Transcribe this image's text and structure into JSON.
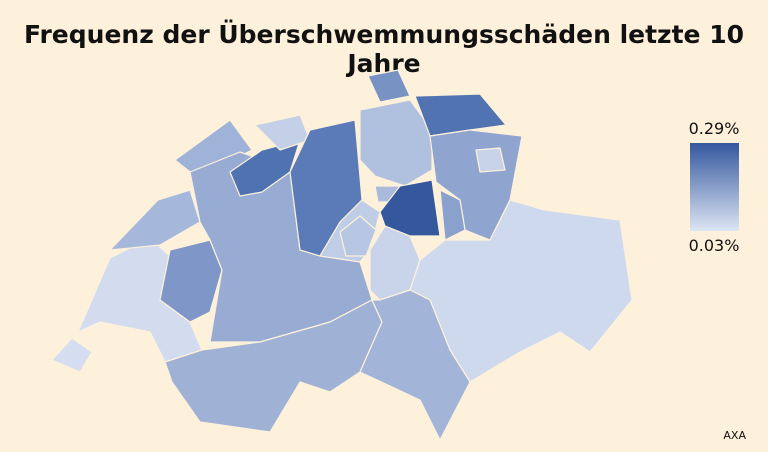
{
  "title": "Frequenz der Überschwemmungsschäden letzte 10 Jahre",
  "legend": {
    "max_label": "0.29%",
    "min_label": "0.03%",
    "max_color": "#34579e",
    "min_color": "#dde5f3"
  },
  "source": "AXA",
  "background": "#fdf1db",
  "regions": [
    {
      "id": "geneva",
      "fill": "#d5def0"
    },
    {
      "id": "vaud",
      "fill": "#d3dcef"
    },
    {
      "id": "jura",
      "fill": "#9fb2d7"
    },
    {
      "id": "neuchatel",
      "fill": "#a5b7da"
    },
    {
      "id": "fribourg",
      "fill": "#7f97c8"
    },
    {
      "id": "bern",
      "fill": "#98acd3"
    },
    {
      "id": "valais",
      "fill": "#9fb2d6"
    },
    {
      "id": "solothurn",
      "fill": "#4f72b1"
    },
    {
      "id": "basel",
      "fill": "#c4d0e8"
    },
    {
      "id": "aargau",
      "fill": "#5a7bb8"
    },
    {
      "id": "zurich",
      "fill": "#b0c0df"
    },
    {
      "id": "schaffhausen",
      "fill": "#7892c4"
    },
    {
      "id": "thurgau",
      "fill": "#5173b2"
    },
    {
      "id": "st-gallen",
      "fill": "#8fa5d0"
    },
    {
      "id": "appenzell",
      "fill": "#c8d3ea"
    },
    {
      "id": "lucerne",
      "fill": "#c0cde6"
    },
    {
      "id": "zug",
      "fill": "#a9badc"
    },
    {
      "id": "schwyz",
      "fill": "#34579e"
    },
    {
      "id": "glarus",
      "fill": "#8aa1cd"
    },
    {
      "id": "uri",
      "fill": "#c9d4ea"
    },
    {
      "id": "obwalden-nidwalden",
      "fill": "#b7c6e2"
    },
    {
      "id": "graubuenden",
      "fill": "#cfd9ee"
    },
    {
      "id": "ticino",
      "fill": "#a2b4d8"
    }
  ]
}
